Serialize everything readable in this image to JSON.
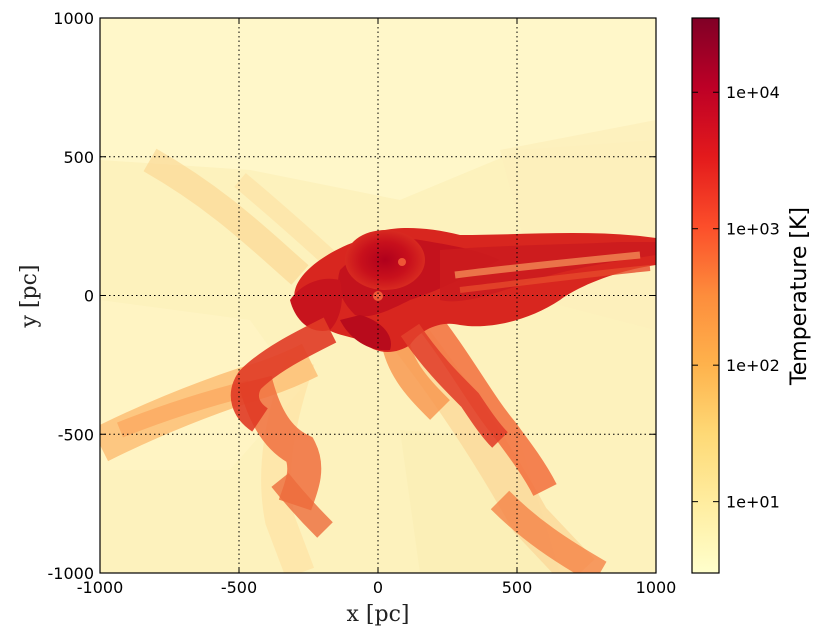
{
  "chart_data": {
    "type": "heatmap",
    "title": "",
    "xlabel": "x [pc]",
    "ylabel": "y [pc]",
    "xlim": [
      -1000,
      1000
    ],
    "ylim": [
      -1000,
      1000
    ],
    "x_ticks": [
      "-1000",
      "-500",
      "0",
      "500",
      "1000"
    ],
    "y_ticks": [
      "-1000",
      "-500",
      "0",
      "500",
      "1000"
    ],
    "grid": true,
    "colorbar": {
      "label": "Temperature [K]",
      "scale": "log",
      "range": [
        3,
        35000
      ],
      "ticks": [
        10,
        100,
        1000,
        10000
      ],
      "tick_labels": [
        "1e+01",
        "1e+02",
        "1e+03",
        "1e+04"
      ],
      "colors": [
        "#ffffcc",
        "#ffeda0",
        "#fed976",
        "#feb24c",
        "#fd8d3c",
        "#fc4e2a",
        "#e31a1c",
        "#bd0026",
        "#800026"
      ]
    }
  }
}
